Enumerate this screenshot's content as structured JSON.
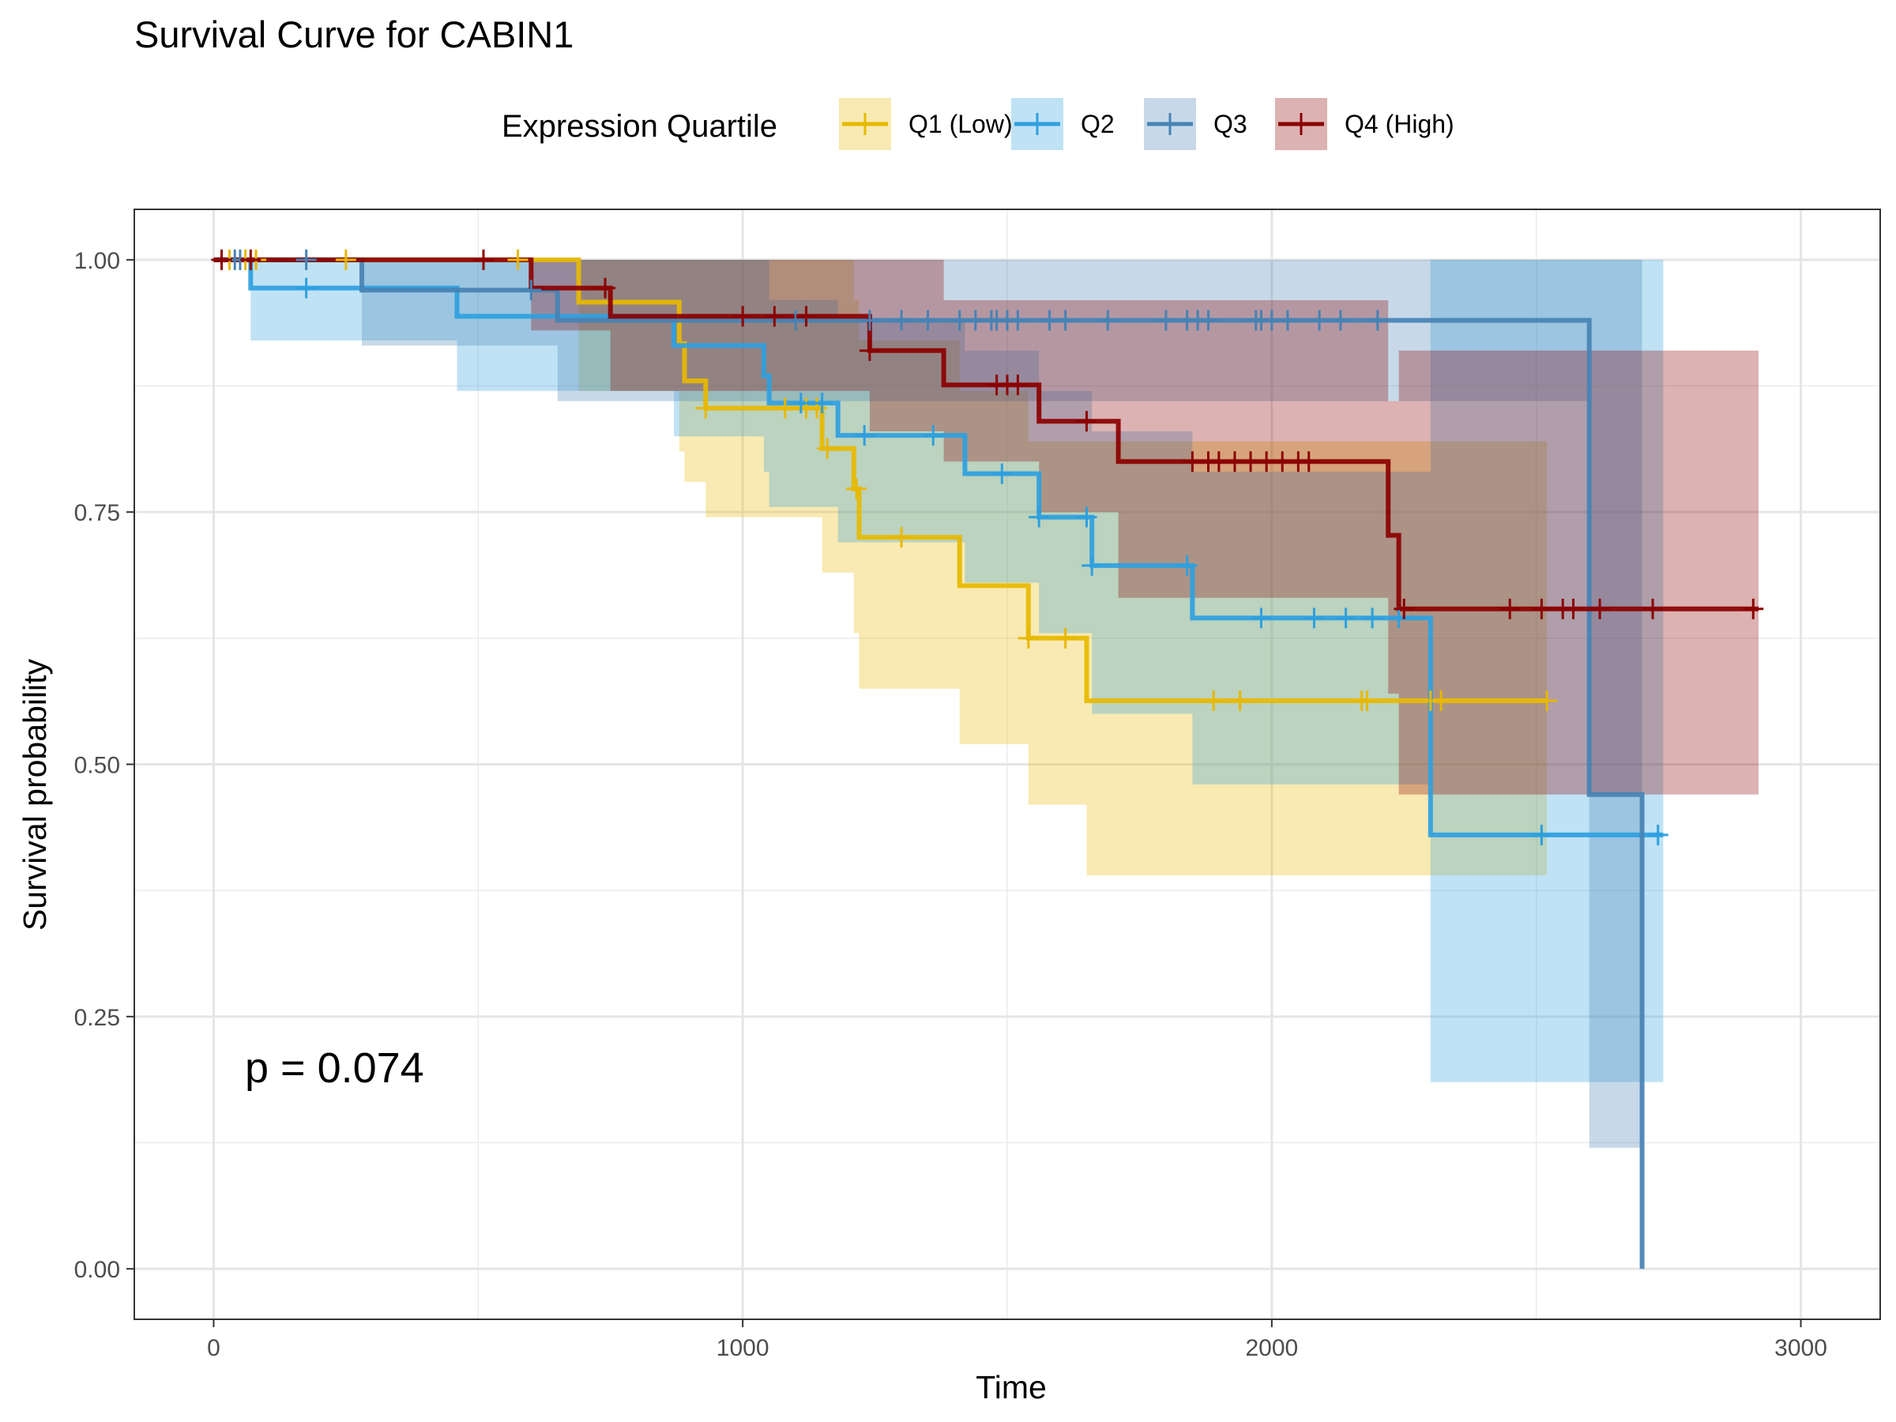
{
  "chart_data": {
    "type": "line",
    "subtype": "kaplan-meier survival curve with confidence bands",
    "title": "Survival Curve for CABIN1",
    "xlabel": "Time",
    "ylabel": "Survival probability",
    "xlim": [
      -150,
      3150
    ],
    "ylim": [
      -0.05,
      1.05
    ],
    "x_ticks": [
      0,
      1000,
      2000,
      3000
    ],
    "x_tick_labels": [
      "0",
      "1000",
      "2000",
      "3000"
    ],
    "y_ticks": [
      0,
      0.25,
      0.5,
      0.75,
      1
    ],
    "y_tick_labels": [
      "0.00",
      "0.25",
      "0.50",
      "0.75",
      "1.00"
    ],
    "grid": true,
    "legend": {
      "title": "Expression Quartile",
      "placement": "top"
    },
    "annotation": "p = 0.074",
    "series": [
      {
        "name": "Q1 (Low)",
        "color": "#E7B800",
        "steps": [
          [
            0,
            1
          ],
          [
            690,
            0.958
          ],
          [
            880,
            0.917
          ],
          [
            890,
            0.88
          ],
          [
            930,
            0.853
          ],
          [
            1150,
            0.813
          ],
          [
            1210,
            0.773
          ],
          [
            1220,
            0.725
          ],
          [
            1410,
            0.677
          ],
          [
            1540,
            0.625
          ],
          [
            1650,
            0.563
          ]
        ],
        "end": 2520,
        "lower": [
          [
            0,
            1
          ],
          [
            690,
            0.87
          ],
          [
            880,
            0.81
          ],
          [
            890,
            0.78
          ],
          [
            930,
            0.745
          ],
          [
            1150,
            0.69
          ],
          [
            1210,
            0.63
          ],
          [
            1220,
            0.575
          ],
          [
            1410,
            0.52
          ],
          [
            1540,
            0.46
          ],
          [
            1650,
            0.39
          ]
        ],
        "upper": [
          [
            0,
            1
          ],
          [
            690,
            1
          ],
          [
            880,
            1
          ],
          [
            890,
            1
          ],
          [
            930,
            1
          ],
          [
            1150,
            1
          ],
          [
            1210,
            0.96
          ],
          [
            1220,
            0.92
          ],
          [
            1410,
            0.87
          ],
          [
            1540,
            0.82
          ],
          [
            1650,
            0.82
          ]
        ],
        "censor_times": [
          30,
          60,
          80,
          250,
          575,
          930,
          1080,
          1120,
          1140,
          1160,
          1215,
          1300,
          1540,
          1610,
          1890,
          1940,
          2170,
          2180,
          2300,
          2320,
          2520
        ]
      },
      {
        "name": "Q2",
        "color": "#2E9FDF",
        "steps": [
          [
            0,
            1
          ],
          [
            70,
            0.972
          ],
          [
            460,
            0.944
          ],
          [
            870,
            0.915
          ],
          [
            1040,
            0.885
          ],
          [
            1050,
            0.858
          ],
          [
            1180,
            0.826
          ],
          [
            1420,
            0.788
          ],
          [
            1560,
            0.745
          ],
          [
            1660,
            0.697
          ],
          [
            1850,
            0.645
          ],
          [
            2300,
            0.43
          ]
        ],
        "end": 2740,
        "lower": [
          [
            0,
            1
          ],
          [
            70,
            0.92
          ],
          [
            460,
            0.87
          ],
          [
            870,
            0.825
          ],
          [
            1040,
            0.79
          ],
          [
            1050,
            0.755
          ],
          [
            1180,
            0.72
          ],
          [
            1420,
            0.68
          ],
          [
            1560,
            0.63
          ],
          [
            1660,
            0.55
          ],
          [
            1850,
            0.48
          ],
          [
            2300,
            0.185
          ]
        ],
        "upper": [
          [
            0,
            1
          ],
          [
            70,
            1
          ],
          [
            460,
            1
          ],
          [
            870,
            1
          ],
          [
            1040,
            1
          ],
          [
            1050,
            0.96
          ],
          [
            1180,
            0.94
          ],
          [
            1420,
            0.91
          ],
          [
            1560,
            0.87
          ],
          [
            1660,
            0.83
          ],
          [
            1850,
            0.79
          ],
          [
            2300,
            1
          ]
        ],
        "censor_times": [
          175,
          1110,
          1150,
          1230,
          1360,
          1490,
          1560,
          1650,
          1660,
          1840,
          1980,
          2080,
          2140,
          2190,
          2240,
          2510,
          2730
        ]
      },
      {
        "name": "Q3",
        "color": "#4682B4",
        "steps": [
          [
            0,
            1
          ],
          [
            280,
            0.97
          ],
          [
            650,
            0.94
          ],
          [
            2600,
            0.47
          ],
          [
            2700,
            0
          ]
        ],
        "end": 2700,
        "lower": [
          [
            0,
            1
          ],
          [
            280,
            0.915
          ],
          [
            650,
            0.86
          ],
          [
            2600,
            0.12
          ],
          [
            2700,
            0
          ]
        ],
        "upper": [
          [
            0,
            1
          ],
          [
            280,
            1
          ],
          [
            650,
            1
          ],
          [
            2600,
            1
          ],
          [
            2700,
            1
          ]
        ],
        "censor_times": [
          40,
          50,
          175,
          600,
          1100,
          1240,
          1300,
          1350,
          1410,
          1440,
          1470,
          1480,
          1500,
          1520,
          1580,
          1610,
          1690,
          1800,
          1840,
          1860,
          1880,
          1970,
          1980,
          2000,
          2030,
          2090,
          2130,
          2200
        ]
      },
      {
        "name": "Q4 (High)",
        "color": "#8B0000",
        "steps": [
          [
            0,
            1
          ],
          [
            600,
            0.972
          ],
          [
            750,
            0.944
          ],
          [
            1240,
            0.91
          ],
          [
            1380,
            0.876
          ],
          [
            1560,
            0.84
          ],
          [
            1710,
            0.8
          ],
          [
            2220,
            0.727
          ],
          [
            2240,
            0.654
          ]
        ],
        "end": 2920,
        "lower": [
          [
            0,
            1
          ],
          [
            600,
            0.93
          ],
          [
            750,
            0.87
          ],
          [
            1240,
            0.83
          ],
          [
            1380,
            0.8
          ],
          [
            1560,
            0.75
          ],
          [
            1710,
            0.665
          ],
          [
            2220,
            0.57
          ],
          [
            2240,
            0.47
          ]
        ],
        "upper": [
          [
            0,
            1
          ],
          [
            600,
            1
          ],
          [
            750,
            1
          ],
          [
            1240,
            1
          ],
          [
            1380,
            0.96
          ],
          [
            1560,
            0.96
          ],
          [
            1710,
            0.96
          ],
          [
            2220,
            0.86
          ],
          [
            2240,
            0.91
          ]
        ],
        "censor_times": [
          15,
          70,
          510,
          740,
          1000,
          1060,
          1120,
          1240,
          1480,
          1500,
          1520,
          1650,
          1850,
          1880,
          1900,
          1930,
          1960,
          1990,
          2020,
          2050,
          2070,
          2250,
          2450,
          2510,
          2550,
          2570,
          2620,
          2720,
          2910
        ]
      }
    ]
  }
}
